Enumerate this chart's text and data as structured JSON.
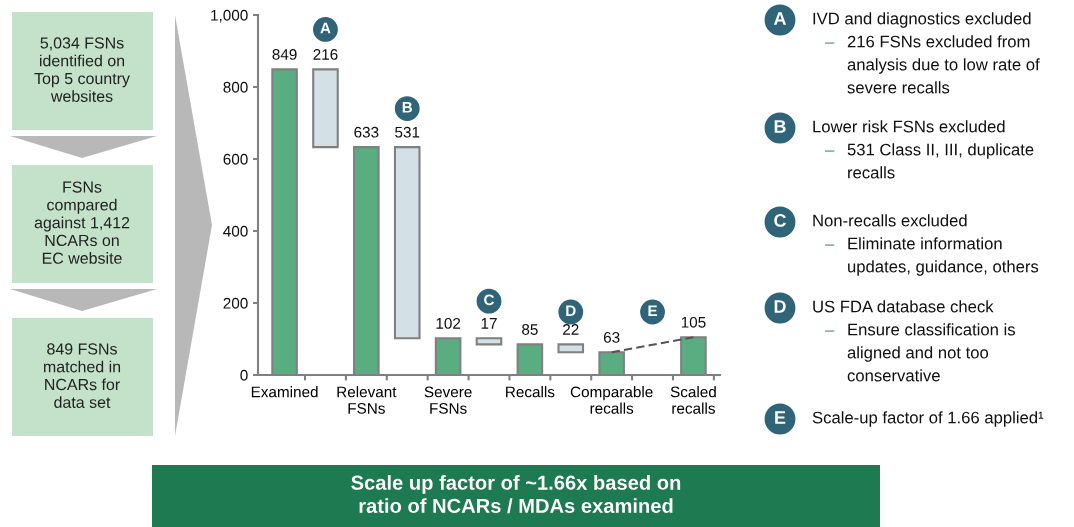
{
  "chart_data": {
    "type": "bar",
    "categories": [
      "Examined",
      null,
      "Relevant FSNs",
      null,
      "Severe FSNs",
      null,
      "Recalls",
      null,
      "Comparable recalls",
      null,
      "Scaled recalls"
    ],
    "series": [
      {
        "values": [
          849,
          216,
          633,
          531,
          102,
          17,
          85,
          22,
          63,
          null,
          105
        ],
        "base": [
          0,
          633,
          0,
          102,
          0,
          85,
          0,
          63,
          0,
          null,
          0
        ],
        "colors": [
          "#5aad80",
          "#d3e0e6",
          "#5aad80",
          "#d3e0e6",
          "#5aad80",
          "#d3e0e6",
          "#5aad80",
          "#d3e0e6",
          "#5aad80",
          null,
          "#5aad80"
        ]
      },
      {
        "type": "line",
        "color": "#555555",
        "line_style": "dashed",
        "values": [
          null,
          null,
          null,
          null,
          null,
          null,
          null,
          null,
          63,
          null,
          105
        ],
        "value_labels": [
          null,
          null,
          null,
          null,
          null,
          null,
          null,
          null,
          null,
          null,
          null
        ]
      }
    ],
    "ylim": [
      0,
      1000
    ],
    "yticks": [
      0,
      200,
      400,
      600,
      800,
      {
        "value": 1000,
        "label": "1,000"
      }
    ],
    "data_labels": true,
    "grid": false,
    "annotations": [
      "5,034 FSNs\nidentified on\nTop 5 country\nwebsites",
      "FSNs\ncompared\nagainst 1,412\nNCARs on\nEC website",
      "849 FSNs\nmatched in\nNCARs for\ndata set",
      {
        "text": "A",
        "y": 960
      },
      {
        "text": "B",
        "y": 740
      },
      {
        "text": "C",
        "y": 205
      },
      {
        "text": "D",
        "y": 175
      },
      {
        "text": "E",
        "y": 175
      },
      "IVD and diagnostics excluded\n– 216 FSNs excluded from\nanalysis due to low rate of\nsevere recalls",
      "Lower risk FSNs excluded\n– 531 Class II, III, duplicate\nrecalls",
      "Non-recalls excluded\n– Eliminate information\nupdates, guidance, others",
      "US FDA database check\n– Ensure classification is\naligned and not too\nconservative",
      "Scale-up factor of 1.66 applied¹",
      "Scale up factor of ~1.66x based on\nratio of NCARs / MDAs examined"
    ]
  }
}
